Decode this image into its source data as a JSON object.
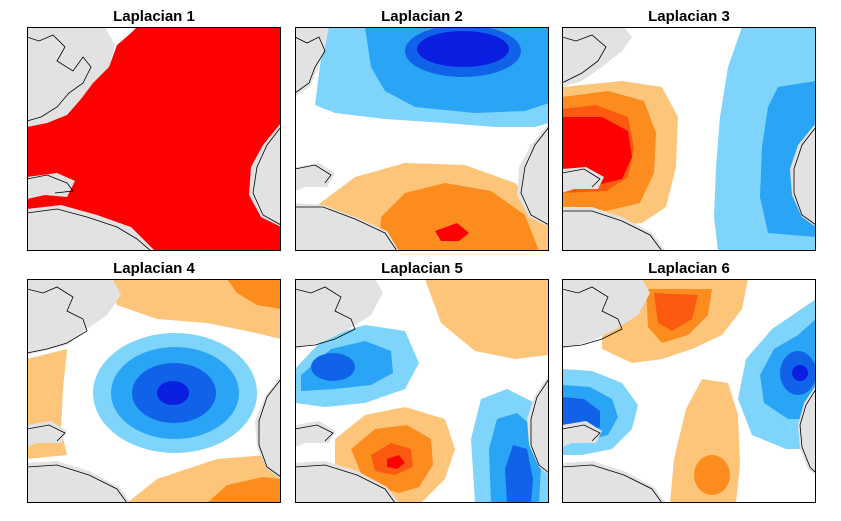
{
  "figure": {
    "panels": [
      {
        "title": "Laplacian 1",
        "pattern": "uniform-positive"
      },
      {
        "title": "Laplacian 2",
        "pattern": "north-negative-south-positive"
      },
      {
        "title": "Laplacian 3",
        "pattern": "west-positive-east-negative"
      },
      {
        "title": "Laplacian 4",
        "pattern": "center-negative-ring-positive"
      },
      {
        "title": "Laplacian 5",
        "pattern": "quadrupole"
      },
      {
        "title": "Laplacian 6",
        "pattern": "multipole"
      }
    ],
    "colors": {
      "pos1": "#fdc57a",
      "pos2": "#fd8c1e",
      "pos3": "#fb5a10",
      "pos4": "#ff0000",
      "neg1": "#7fd4fb",
      "neg2": "#2aa4f5",
      "neg3": "#1062e8",
      "neg4": "#0a1ee0",
      "land": "#e2e2e2",
      "coast": "#000000"
    }
  }
}
